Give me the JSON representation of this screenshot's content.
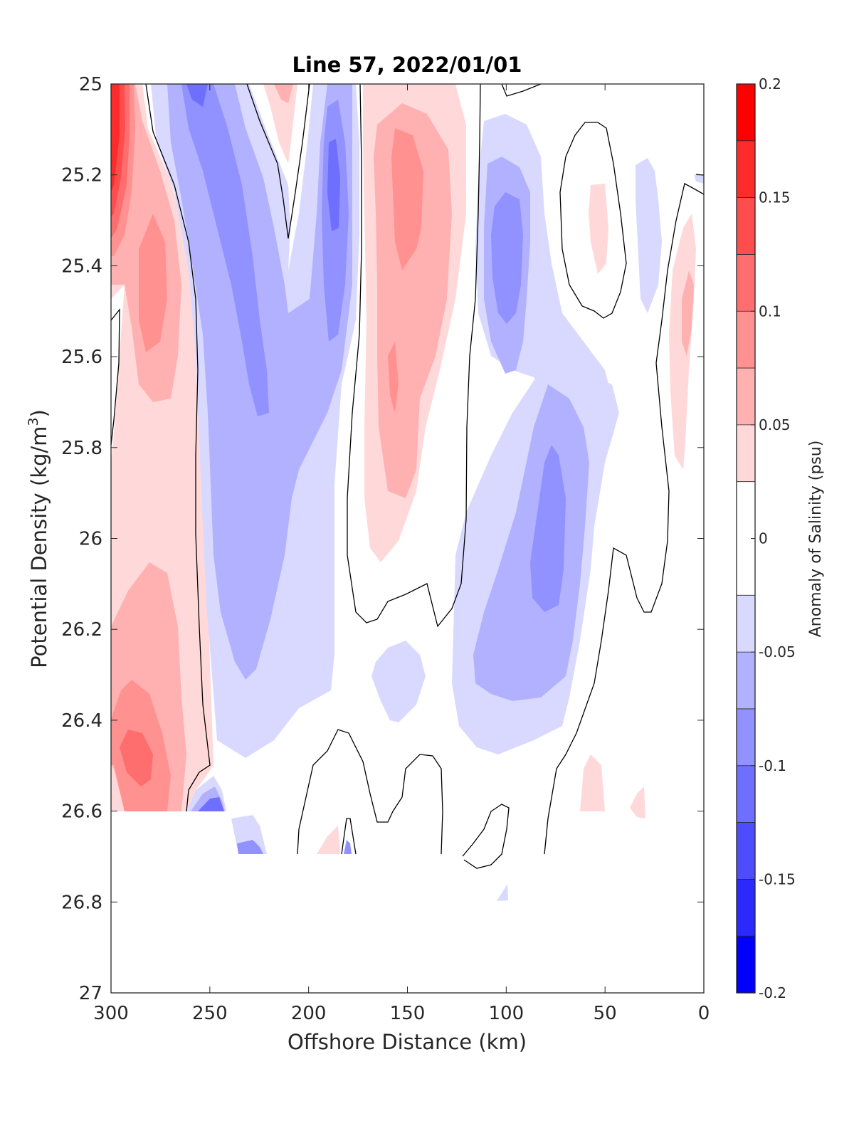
{
  "chart_data": {
    "type": "contourf",
    "title": "Line 57, 2022/01/01",
    "xlabel": "Offshore Distance (km)",
    "ylabel_main": "Potential Density (kg/m",
    "ylabel_sup": "3",
    "ylabel_end": ")",
    "xlim": [
      300,
      0
    ],
    "ylim": [
      25,
      27
    ],
    "x_reversed": true,
    "y_reversed": true,
    "x_ticks": [
      "300",
      "250",
      "200",
      "150",
      "100",
      "50",
      "0"
    ],
    "y_ticks": [
      "25",
      "25.2",
      "25.4",
      "25.6",
      "25.8",
      "26",
      "26.2",
      "26.4",
      "26.6",
      "26.8",
      "27"
    ],
    "colorbar": {
      "label": "Anomaly of Salinity (psu)",
      "range": [
        -0.2,
        0.2
      ],
      "ticks": [
        "0.2",
        "0.15",
        "0.1",
        "0.05",
        "0",
        "-0.05",
        "-0.1",
        "-0.15",
        "-0.2"
      ],
      "levels": [
        {
          "lo": 0.175,
          "hi": 0.2,
          "color": "#ff0000"
        },
        {
          "lo": 0.15,
          "hi": 0.175,
          "color": "#ff2a2a"
        },
        {
          "lo": 0.125,
          "hi": 0.15,
          "color": "#ff4d4d"
        },
        {
          "lo": 0.1,
          "hi": 0.125,
          "color": "#ff6e6e"
        },
        {
          "lo": 0.075,
          "hi": 0.1,
          "color": "#ff9191"
        },
        {
          "lo": 0.05,
          "hi": 0.075,
          "color": "#ffb1b1"
        },
        {
          "lo": 0.025,
          "hi": 0.05,
          "color": "#ffd9d9"
        },
        {
          "lo": -0.025,
          "hi": 0.025,
          "color": "#ffffff"
        },
        {
          "lo": -0.05,
          "hi": -0.025,
          "color": "#d9d9ff"
        },
        {
          "lo": -0.075,
          "hi": -0.05,
          "color": "#b1b1ff"
        },
        {
          "lo": -0.1,
          "hi": -0.075,
          "color": "#9191ff"
        },
        {
          "lo": -0.125,
          "hi": -0.1,
          "color": "#6e6eff"
        },
        {
          "lo": -0.15,
          "hi": -0.125,
          "color": "#4d4dff"
        },
        {
          "lo": -0.175,
          "hi": -0.15,
          "color": "#2a2aff"
        },
        {
          "lo": -0.2,
          "hi": -0.175,
          "color": "#0000ff"
        }
      ]
    },
    "grid": false,
    "anomaly_features": [
      {
        "label": "nearshore-high-salinity",
        "x": [
          300,
          275
        ],
        "y": [
          25.0,
          25.6
        ],
        "value": 0.2
      },
      {
        "label": "offshore-positive-band",
        "x": [
          300,
          260
        ],
        "y": [
          25.0,
          26.6
        ],
        "value": 0.1
      },
      {
        "label": "deep-positive-core",
        "x": [
          290,
          270
        ],
        "y": [
          26.3,
          26.6
        ],
        "value": 0.12
      },
      {
        "label": "negative-band-240",
        "x": [
          255,
          210
        ],
        "y": [
          25.0,
          26.5
        ],
        "value": -0.1
      },
      {
        "label": "negative-core-185",
        "x": [
          195,
          175
        ],
        "y": [
          25.0,
          25.6
        ],
        "value": -0.11
      },
      {
        "label": "positive-band-150",
        "x": [
          165,
          130
        ],
        "y": [
          25.0,
          26.1
        ],
        "value": 0.09
      },
      {
        "label": "negative-core-95",
        "x": [
          110,
          85
        ],
        "y": [
          25.1,
          25.7
        ],
        "value": -0.1
      },
      {
        "label": "negative-core-75",
        "x": [
          90,
          55
        ],
        "y": [
          25.6,
          26.5
        ],
        "value": -0.1
      },
      {
        "label": "positive-spot-50",
        "x": [
          55,
          40
        ],
        "y": [
          25.2,
          25.4
        ],
        "value": 0.04
      },
      {
        "label": "positive-strip-10",
        "x": [
          20,
          5
        ],
        "y": [
          25.3,
          25.9
        ],
        "value": 0.06
      }
    ]
  }
}
